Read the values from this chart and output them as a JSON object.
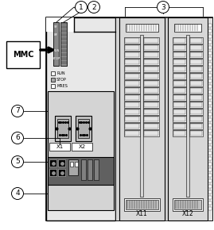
{
  "white": "#ffffff",
  "light_gray": "#d4d4d4",
  "mid_gray": "#a8a8a8",
  "dark_gray": "#606060",
  "cpu_bg": "#e8e8e8",
  "io_bg": "#d8d8d8",
  "connector_bg": "#c0c0c0",
  "black": "#000000",
  "mmc_label": "MMC",
  "run_label": "RUN",
  "stop_label": "STOP",
  "mres_label": "MRES",
  "x1_label": "X1",
  "x2_label": "X2",
  "x11_label": "X11",
  "x12_label": "X12",
  "fig_width": 2.69,
  "fig_height": 2.9,
  "dpi": 100
}
